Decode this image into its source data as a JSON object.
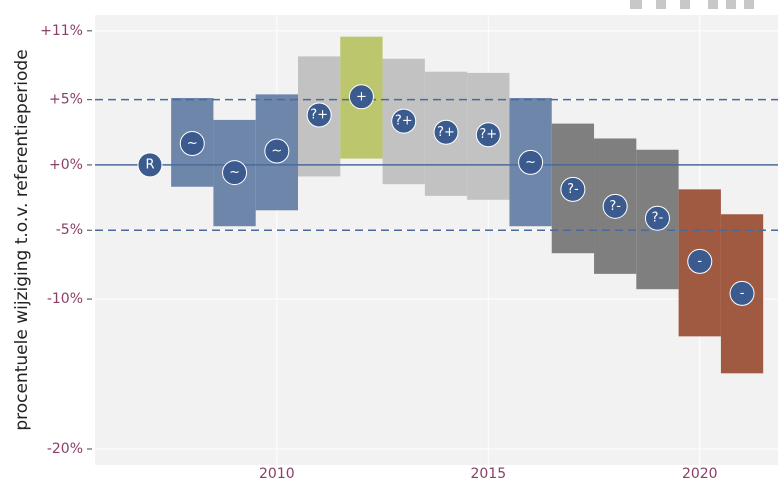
{
  "chart_data": {
    "type": "interval",
    "y_label": "procentuele wijziging t.o.v. referentieperiode",
    "log_y": true,
    "grid": true,
    "xlim": [
      2005.7,
      2021.85
    ],
    "xticks": [
      2010,
      2015,
      2020
    ],
    "ylim": [
      0.79,
      1.125
    ],
    "yticks": [
      {
        "value": 0.8,
        "label": "-20%"
      },
      {
        "value": 0.9,
        "label": "-10%"
      },
      {
        "value": 0.95,
        "label": "-5%"
      },
      {
        "value": 1,
        "label": "+0%"
      },
      {
        "value": 1.0526,
        "label": "+5%"
      },
      {
        "value": 1.1111,
        "label": "+11%"
      }
    ],
    "reference_line": 1,
    "reference_color": "#4a6a9a",
    "threshold_lines": [
      0.95,
      1.0526
    ],
    "marker_color": "#3b5b8f",
    "x": [
      2007,
      2008,
      2009,
      2010,
      2011,
      2012,
      2013,
      2014,
      2015,
      2016,
      2017,
      2018,
      2019,
      2020,
      2021
    ],
    "values": [
      1.0,
      1.017,
      0.994,
      1.011,
      1.04,
      1.055,
      1.035,
      1.026,
      1.024,
      1.002,
      0.981,
      0.968,
      0.959,
      0.927,
      0.904
    ],
    "low": [
      null,
      0.983,
      0.953,
      0.965,
      0.991,
      1.005,
      0.985,
      0.976,
      0.973,
      0.953,
      0.933,
      0.918,
      0.907,
      0.874,
      0.849
    ],
    "high": [
      null,
      1.054,
      1.036,
      1.057,
      1.089,
      1.106,
      1.087,
      1.076,
      1.075,
      1.054,
      1.033,
      1.021,
      1.012,
      0.981,
      0.962
    ],
    "point_labels": [
      "R",
      "~",
      "~",
      "~",
      "?+",
      "+",
      "?+",
      "?+",
      "?+",
      "~",
      "?-",
      "?-",
      "?-",
      "-",
      "-"
    ],
    "colors": [
      "#6f86ab",
      "#6f86ab",
      "#6f86ab",
      "#6f86ab",
      "#c2c2c2",
      "#bcc66c",
      "#c2c2c2",
      "#c2c2c2",
      "#c2c2c2",
      "#6f86ab",
      "#7f7f7f",
      "#7f7f7f",
      "#7f7f7f",
      "#a15a42",
      "#a15a42"
    ]
  }
}
